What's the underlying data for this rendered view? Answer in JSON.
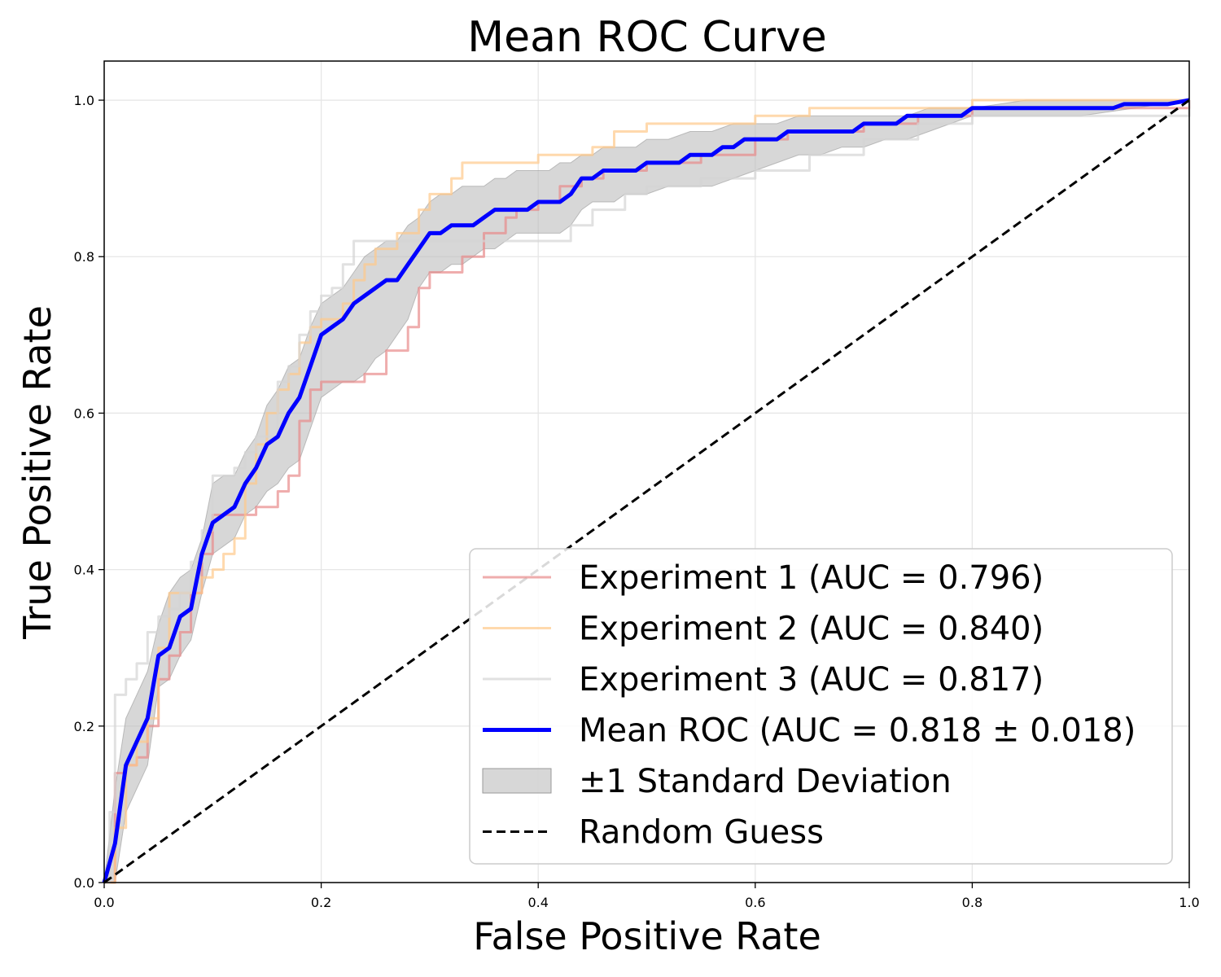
{
  "chart_data": {
    "type": "line",
    "title": "Mean ROC Curve",
    "xlabel": "False Positive Rate",
    "ylabel": "True Positive Rate",
    "xlim": [
      0.0,
      1.0
    ],
    "ylim": [
      0.0,
      1.05
    ],
    "grid": true,
    "legend_position": "lower-right",
    "x_ticks": [
      0.0,
      0.2,
      0.4,
      0.6,
      0.8,
      1.0
    ],
    "x_tick_labels": [
      "0.0",
      "0.2",
      "0.4",
      "0.6",
      "0.8",
      "1.0"
    ],
    "y_ticks": [
      0.0,
      0.2,
      0.4,
      0.6,
      0.8,
      1.0
    ],
    "y_tick_labels": [
      "0.0",
      "0.2",
      "0.4",
      "0.6",
      "0.8",
      "1.0"
    ],
    "series": [
      {
        "name": "Experiment 1 (AUC = 0.796)",
        "color": "#e88a8a",
        "style": "step",
        "x": [
          0.0,
          0.01,
          0.02,
          0.03,
          0.04,
          0.05,
          0.06,
          0.07,
          0.08,
          0.09,
          0.1,
          0.12,
          0.14,
          0.16,
          0.17,
          0.18,
          0.19,
          0.2,
          0.22,
          0.24,
          0.26,
          0.28,
          0.29,
          0.3,
          0.31,
          0.33,
          0.35,
          0.37,
          0.38,
          0.4,
          0.42,
          0.44,
          0.46,
          0.5,
          0.55,
          0.6,
          0.63,
          0.66,
          0.7,
          0.75,
          0.8,
          0.9,
          1.0
        ],
        "y": [
          0.0,
          0.14,
          0.15,
          0.16,
          0.2,
          0.26,
          0.29,
          0.32,
          0.37,
          0.42,
          0.47,
          0.47,
          0.48,
          0.5,
          0.52,
          0.59,
          0.63,
          0.64,
          0.64,
          0.65,
          0.68,
          0.71,
          0.76,
          0.78,
          0.78,
          0.8,
          0.83,
          0.85,
          0.86,
          0.87,
          0.89,
          0.9,
          0.91,
          0.92,
          0.93,
          0.95,
          0.96,
          0.96,
          0.97,
          0.98,
          0.99,
          0.99,
          1.0
        ]
      },
      {
        "name": "Experiment 2 (AUC = 0.840)",
        "color": "#ffc98a",
        "style": "step",
        "x": [
          0.0,
          0.01,
          0.02,
          0.03,
          0.04,
          0.05,
          0.06,
          0.08,
          0.09,
          0.1,
          0.11,
          0.12,
          0.13,
          0.14,
          0.15,
          0.16,
          0.17,
          0.18,
          0.19,
          0.2,
          0.22,
          0.23,
          0.24,
          0.25,
          0.27,
          0.29,
          0.3,
          0.32,
          0.33,
          0.35,
          0.37,
          0.4,
          0.43,
          0.45,
          0.47,
          0.5,
          0.55,
          0.6,
          0.65,
          0.7,
          0.8,
          1.0
        ],
        "y": [
          0.0,
          0.07,
          0.15,
          0.18,
          0.21,
          0.3,
          0.37,
          0.37,
          0.39,
          0.4,
          0.42,
          0.44,
          0.51,
          0.56,
          0.6,
          0.63,
          0.65,
          0.69,
          0.71,
          0.72,
          0.74,
          0.77,
          0.79,
          0.81,
          0.83,
          0.86,
          0.88,
          0.9,
          0.92,
          0.92,
          0.92,
          0.93,
          0.93,
          0.94,
          0.96,
          0.97,
          0.97,
          0.98,
          0.99,
          0.99,
          1.0,
          1.0
        ]
      },
      {
        "name": "Experiment 3 (AUC = 0.817)",
        "color": "#d4d4d4",
        "style": "step",
        "x": [
          0.0,
          0.005,
          0.01,
          0.02,
          0.03,
          0.04,
          0.05,
          0.06,
          0.07,
          0.08,
          0.09,
          0.1,
          0.12,
          0.13,
          0.14,
          0.16,
          0.17,
          0.18,
          0.19,
          0.2,
          0.21,
          0.22,
          0.23,
          0.25,
          0.27,
          0.29,
          0.31,
          0.33,
          0.35,
          0.38,
          0.4,
          0.43,
          0.45,
          0.48,
          0.5,
          0.55,
          0.6,
          0.65,
          0.7,
          0.75,
          0.8,
          0.9,
          1.0
        ],
        "y": [
          0.0,
          0.09,
          0.24,
          0.26,
          0.28,
          0.32,
          0.34,
          0.35,
          0.37,
          0.41,
          0.45,
          0.52,
          0.53,
          0.55,
          0.57,
          0.64,
          0.66,
          0.7,
          0.73,
          0.75,
          0.76,
          0.79,
          0.82,
          0.82,
          0.82,
          0.82,
          0.82,
          0.82,
          0.82,
          0.82,
          0.82,
          0.84,
          0.86,
          0.88,
          0.89,
          0.9,
          0.91,
          0.93,
          0.95,
          0.97,
          0.98,
          0.98,
          1.0
        ]
      },
      {
        "name": "Mean ROC (AUC = 0.818 ± 0.018)",
        "color": "#0000ff",
        "style": "line",
        "x": [
          0.0,
          0.01,
          0.02,
          0.03,
          0.04,
          0.05,
          0.06,
          0.07,
          0.08,
          0.09,
          0.1,
          0.11,
          0.12,
          0.13,
          0.14,
          0.15,
          0.16,
          0.17,
          0.18,
          0.19,
          0.2,
          0.21,
          0.22,
          0.23,
          0.24,
          0.25,
          0.26,
          0.27,
          0.28,
          0.29,
          0.3,
          0.31,
          0.32,
          0.33,
          0.34,
          0.35,
          0.36,
          0.37,
          0.38,
          0.39,
          0.4,
          0.41,
          0.42,
          0.43,
          0.44,
          0.45,
          0.46,
          0.47,
          0.48,
          0.49,
          0.5,
          0.51,
          0.52,
          0.53,
          0.54,
          0.55,
          0.56,
          0.57,
          0.58,
          0.59,
          0.6,
          0.61,
          0.62,
          0.63,
          0.64,
          0.65,
          0.66,
          0.67,
          0.68,
          0.69,
          0.7,
          0.71,
          0.72,
          0.73,
          0.74,
          0.75,
          0.76,
          0.77,
          0.78,
          0.79,
          0.8,
          0.81,
          0.85,
          0.88,
          0.89,
          0.9,
          0.92,
          0.93,
          0.94,
          0.96,
          0.98,
          1.0
        ],
        "y": [
          0.0,
          0.05,
          0.15,
          0.18,
          0.21,
          0.29,
          0.3,
          0.34,
          0.35,
          0.42,
          0.46,
          0.47,
          0.48,
          0.51,
          0.53,
          0.56,
          0.57,
          0.6,
          0.62,
          0.66,
          0.7,
          0.71,
          0.72,
          0.74,
          0.75,
          0.76,
          0.77,
          0.77,
          0.79,
          0.81,
          0.83,
          0.83,
          0.84,
          0.84,
          0.84,
          0.85,
          0.86,
          0.86,
          0.86,
          0.86,
          0.87,
          0.87,
          0.87,
          0.88,
          0.9,
          0.9,
          0.91,
          0.91,
          0.91,
          0.91,
          0.92,
          0.92,
          0.92,
          0.92,
          0.93,
          0.93,
          0.93,
          0.94,
          0.94,
          0.95,
          0.95,
          0.95,
          0.95,
          0.96,
          0.96,
          0.96,
          0.96,
          0.96,
          0.96,
          0.96,
          0.97,
          0.97,
          0.97,
          0.97,
          0.98,
          0.98,
          0.98,
          0.98,
          0.98,
          0.98,
          0.99,
          0.99,
          0.99,
          0.99,
          0.99,
          0.99,
          0.99,
          0.99,
          0.995,
          0.995,
          0.995,
          1.0
        ]
      }
    ],
    "std_band": {
      "name": "±1 Standard Deviation",
      "color": "#bdbdbd",
      "x": [
        0.0,
        0.01,
        0.02,
        0.03,
        0.04,
        0.05,
        0.06,
        0.07,
        0.08,
        0.09,
        0.1,
        0.11,
        0.12,
        0.13,
        0.14,
        0.15,
        0.16,
        0.17,
        0.18,
        0.19,
        0.2,
        0.21,
        0.22,
        0.23,
        0.24,
        0.25,
        0.26,
        0.27,
        0.28,
        0.29,
        0.3,
        0.31,
        0.32,
        0.33,
        0.34,
        0.35,
        0.36,
        0.37,
        0.38,
        0.39,
        0.4,
        0.41,
        0.42,
        0.43,
        0.44,
        0.45,
        0.46,
        0.47,
        0.48,
        0.49,
        0.5,
        0.52,
        0.54,
        0.56,
        0.58,
        0.6,
        0.62,
        0.64,
        0.66,
        0.68,
        0.7,
        0.72,
        0.74,
        0.76,
        0.78,
        0.8,
        0.85,
        0.9,
        0.95,
        1.0
      ],
      "upper": [
        0.0,
        0.12,
        0.21,
        0.24,
        0.27,
        0.33,
        0.37,
        0.39,
        0.4,
        0.44,
        0.51,
        0.52,
        0.52,
        0.55,
        0.57,
        0.61,
        0.63,
        0.66,
        0.67,
        0.71,
        0.74,
        0.75,
        0.76,
        0.78,
        0.8,
        0.81,
        0.82,
        0.82,
        0.84,
        0.85,
        0.87,
        0.88,
        0.88,
        0.89,
        0.89,
        0.89,
        0.9,
        0.9,
        0.91,
        0.91,
        0.91,
        0.91,
        0.92,
        0.92,
        0.93,
        0.93,
        0.94,
        0.94,
        0.94,
        0.94,
        0.95,
        0.95,
        0.96,
        0.96,
        0.97,
        0.97,
        0.97,
        0.98,
        0.98,
        0.98,
        0.98,
        0.98,
        0.98,
        0.99,
        0.99,
        0.99,
        1.0,
        1.0,
        1.0,
        1.0
      ],
      "lower": [
        0.0,
        0.0,
        0.09,
        0.12,
        0.15,
        0.25,
        0.26,
        0.29,
        0.31,
        0.37,
        0.42,
        0.43,
        0.44,
        0.47,
        0.48,
        0.5,
        0.51,
        0.53,
        0.54,
        0.58,
        0.62,
        0.63,
        0.64,
        0.64,
        0.65,
        0.67,
        0.68,
        0.7,
        0.72,
        0.76,
        0.78,
        0.78,
        0.79,
        0.79,
        0.8,
        0.81,
        0.81,
        0.82,
        0.83,
        0.83,
        0.83,
        0.83,
        0.83,
        0.84,
        0.86,
        0.87,
        0.87,
        0.87,
        0.88,
        0.88,
        0.88,
        0.89,
        0.89,
        0.89,
        0.9,
        0.91,
        0.92,
        0.93,
        0.93,
        0.94,
        0.94,
        0.95,
        0.95,
        0.96,
        0.97,
        0.98,
        0.98,
        0.98,
        0.99,
        1.0
      ]
    },
    "reference_line": {
      "name": "Random Guess",
      "color": "#000000",
      "x": [
        0.0,
        1.0
      ],
      "y": [
        0.0,
        1.0
      ]
    },
    "legend": [
      {
        "label": "Experiment 1 (AUC = 0.796)",
        "kind": "line",
        "color": "#e88a8a"
      },
      {
        "label": "Experiment 2 (AUC = 0.840)",
        "kind": "line",
        "color": "#ffc98a"
      },
      {
        "label": "Experiment 3 (AUC = 0.817)",
        "kind": "line",
        "color": "#d4d4d4"
      },
      {
        "label": "Mean ROC (AUC = 0.818 ± 0.018)",
        "kind": "thick-line",
        "color": "#0000ff"
      },
      {
        "label": "±1 Standard Deviation",
        "kind": "patch",
        "color": "#bdbdbd"
      },
      {
        "label": "Random Guess",
        "kind": "dashed",
        "color": "#000000"
      }
    ]
  }
}
